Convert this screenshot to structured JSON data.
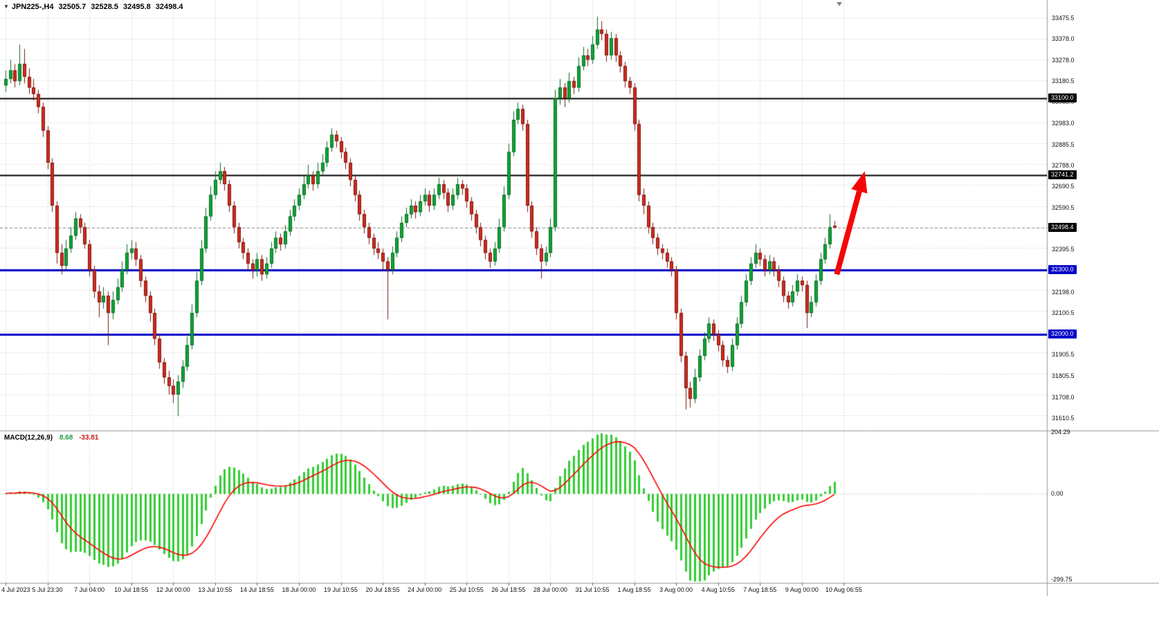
{
  "window": {
    "symbol_period": "JPN225-,H4",
    "quote": {
      "open": "32505.7",
      "high": "32528.5",
      "low": "32495.8",
      "close": "32498.4"
    }
  },
  "colors": {
    "background": "#FFFFFF",
    "grid": "#C8C8C8",
    "bull": "#0FA435",
    "bull_border": "#0A6E24",
    "bear": "#D02A1E",
    "bear_border": "#7E170F",
    "hline_black": "#000000",
    "hline_blue": "#0000C8",
    "current_price_line": "#999999",
    "macd_hist": "#32CD32",
    "macd_signal": "#FF0000",
    "arrow": "#F40606",
    "axis_text": "#111111",
    "badge_text": "#FFFFFF",
    "separator": "#9A9A9A"
  },
  "price_axis": {
    "tick_step": 97.5,
    "ticks": [
      {
        "label": "33475.5",
        "price": 33475.5
      },
      {
        "label": "33378.0",
        "price": 33378.0
      },
      {
        "label": "33278.0",
        "price": 33278.0
      },
      {
        "label": "33180.5",
        "price": 33180.5
      },
      {
        "label": "33083.0",
        "price": 33083.0
      },
      {
        "label": "32983.0",
        "price": 32983.0
      },
      {
        "label": "32885.5",
        "price": 32885.5
      },
      {
        "label": "32788.0",
        "price": 32788.0
      },
      {
        "label": "32690.5",
        "price": 32690.5
      },
      {
        "label": "32590.5",
        "price": 32590.5
      },
      {
        "label": "32395.5",
        "price": 32395.5
      },
      {
        "label": "32198.0",
        "price": 32198.0
      },
      {
        "label": "32100.5",
        "price": 32100.5
      },
      {
        "label": "31905.5",
        "price": 31905.5
      },
      {
        "label": "31805.5",
        "price": 31805.5
      },
      {
        "label": "31708.0",
        "price": 31708.0
      },
      {
        "label": "31610.5",
        "price": 31610.5
      }
    ],
    "badges": [
      {
        "label": "33100.0",
        "price": 33100.0,
        "bg": "#000000"
      },
      {
        "label": "32741.2",
        "price": 32741.2,
        "bg": "#000000"
      },
      {
        "label": "32498.4",
        "price": 32498.4,
        "bg": "#000000"
      },
      {
        "label": "32300.0",
        "price": 32300.0,
        "bg": "#0000C8"
      },
      {
        "label": "32000.0",
        "price": 32000.0,
        "bg": "#0000C8"
      }
    ]
  },
  "macd_panel": {
    "name": "MACD(12,26,9)",
    "main_value": "8.68",
    "signal_value": "-33.81",
    "scale": {
      "max": "204.29",
      "zero": "0.00",
      "min": "-299.75"
    }
  },
  "chart_data": {
    "type": "candlestick",
    "title": "JPN225-,H4",
    "symbol": "JPN225-",
    "timeframe": "H4",
    "ohlc_order": [
      "open",
      "high",
      "low",
      "close"
    ],
    "ylim": [
      31565,
      33545
    ],
    "x_label_every": 9,
    "x_labels": [
      "4 Jul 2023",
      "5 Jul 23:30",
      "7 Jul 04:00",
      "10 Jul 18:55",
      "12 Jul 00:00",
      "13 Jul 10:55",
      "14 Jul 18:55",
      "18 Jul 00:00",
      "19 Jul 10:55",
      "20 Jul 18:55",
      "24 Jul 00:00",
      "25 Jul 10:55",
      "26 Jul 18:55",
      "28 Jul 00:00",
      "31 Jul 10:55",
      "1 Aug 18:55",
      "3 Aug 00:00",
      "4 Aug 10:55",
      "7 Aug 18:55",
      "9 Aug 00:00",
      "10 Aug 06:55"
    ],
    "ohlc": [
      [
        33160,
        33230,
        33130,
        33190
      ],
      [
        33190,
        33280,
        33170,
        33230
      ],
      [
        33230,
        33260,
        33150,
        33180
      ],
      [
        33180,
        33350,
        33160,
        33260
      ],
      [
        33260,
        33330,
        33170,
        33200
      ],
      [
        33200,
        33240,
        33120,
        33150
      ],
      [
        33150,
        33190,
        33090,
        33120
      ],
      [
        33120,
        33140,
        33030,
        33060
      ],
      [
        33060,
        33080,
        32920,
        32950
      ],
      [
        32950,
        32970,
        32770,
        32800
      ],
      [
        32800,
        32820,
        32570,
        32600
      ],
      [
        32600,
        32620,
        32330,
        32380
      ],
      [
        32380,
        32420,
        32280,
        32320
      ],
      [
        32320,
        32440,
        32300,
        32400
      ],
      [
        32400,
        32500,
        32380,
        32460
      ],
      [
        32460,
        32570,
        32440,
        32540
      ],
      [
        32540,
        32560,
        32470,
        32500
      ],
      [
        32500,
        32520,
        32400,
        32420
      ],
      [
        32420,
        32440,
        32270,
        32300
      ],
      [
        32300,
        32320,
        32170,
        32200
      ],
      [
        32200,
        32230,
        32080,
        32150
      ],
      [
        32150,
        32220,
        32120,
        32180
      ],
      [
        32180,
        32200,
        31950,
        32100
      ],
      [
        32100,
        32200,
        32070,
        32160
      ],
      [
        32160,
        32260,
        32140,
        32220
      ],
      [
        32220,
        32340,
        32200,
        32300
      ],
      [
        32300,
        32420,
        32280,
        32380
      ],
      [
        32380,
        32440,
        32350,
        32400
      ],
      [
        32400,
        32430,
        32320,
        32350
      ],
      [
        32350,
        32370,
        32220,
        32250
      ],
      [
        32250,
        32270,
        32150,
        32180
      ],
      [
        32180,
        32200,
        32060,
        32100
      ],
      [
        32100,
        32120,
        31950,
        31980
      ],
      [
        31980,
        32000,
        31840,
        31870
      ],
      [
        31870,
        31890,
        31770,
        31800
      ],
      [
        31800,
        31830,
        31720,
        31760
      ],
      [
        31760,
        31790,
        31680,
        31720
      ],
      [
        31720,
        31810,
        31620,
        31780
      ],
      [
        31780,
        31880,
        31750,
        31850
      ],
      [
        31850,
        31990,
        31830,
        31950
      ],
      [
        31950,
        32140,
        31930,
        32100
      ],
      [
        32100,
        32290,
        32080,
        32250
      ],
      [
        32250,
        32440,
        32230,
        32400
      ],
      [
        32400,
        32590,
        32380,
        32550
      ],
      [
        32550,
        32690,
        32530,
        32650
      ],
      [
        32650,
        32760,
        32630,
        32720
      ],
      [
        32720,
        32800,
        32700,
        32760
      ],
      [
        32760,
        32780,
        32670,
        32700
      ],
      [
        32700,
        32720,
        32570,
        32600
      ],
      [
        32600,
        32620,
        32470,
        32500
      ],
      [
        32500,
        32520,
        32400,
        32430
      ],
      [
        32430,
        32450,
        32350,
        32380
      ],
      [
        32380,
        32400,
        32300,
        32330
      ],
      [
        32330,
        32350,
        32260,
        32300
      ],
      [
        32300,
        32380,
        32270,
        32350
      ],
      [
        32350,
        32370,
        32250,
        32280
      ],
      [
        32280,
        32360,
        32260,
        32330
      ],
      [
        32330,
        32430,
        32310,
        32400
      ],
      [
        32400,
        32480,
        32380,
        32450
      ],
      [
        32450,
        32470,
        32390,
        32420
      ],
      [
        32420,
        32510,
        32400,
        32480
      ],
      [
        32480,
        32580,
        32460,
        32550
      ],
      [
        32550,
        32630,
        32530,
        32600
      ],
      [
        32600,
        32680,
        32580,
        32650
      ],
      [
        32650,
        32740,
        32630,
        32700
      ],
      [
        32700,
        32790,
        32680,
        32740
      ],
      [
        32740,
        32760,
        32670,
        32700
      ],
      [
        32700,
        32800,
        32680,
        32760
      ],
      [
        32760,
        32840,
        32740,
        32800
      ],
      [
        32800,
        32900,
        32780,
        32870
      ],
      [
        32870,
        32960,
        32850,
        32930
      ],
      [
        32930,
        32950,
        32870,
        32900
      ],
      [
        32900,
        32920,
        32820,
        32850
      ],
      [
        32850,
        32870,
        32770,
        32800
      ],
      [
        32800,
        32820,
        32690,
        32720
      ],
      [
        32720,
        32740,
        32620,
        32650
      ],
      [
        32650,
        32670,
        32530,
        32560
      ],
      [
        32560,
        32580,
        32470,
        32500
      ],
      [
        32500,
        32520,
        32420,
        32450
      ],
      [
        32450,
        32470,
        32370,
        32400
      ],
      [
        32400,
        32430,
        32350,
        32380
      ],
      [
        32380,
        32400,
        32300,
        32340
      ],
      [
        32340,
        32360,
        32070,
        32300
      ],
      [
        32300,
        32410,
        32280,
        32380
      ],
      [
        32380,
        32480,
        32360,
        32450
      ],
      [
        32450,
        32550,
        32430,
        32520
      ],
      [
        32520,
        32590,
        32500,
        32560
      ],
      [
        32560,
        32630,
        32540,
        32600
      ],
      [
        32600,
        32620,
        32540,
        32570
      ],
      [
        32570,
        32650,
        32550,
        32620
      ],
      [
        32620,
        32680,
        32600,
        32650
      ],
      [
        32650,
        32670,
        32570,
        32600
      ],
      [
        32600,
        32680,
        32580,
        32650
      ],
      [
        32650,
        32730,
        32630,
        32700
      ],
      [
        32700,
        32720,
        32630,
        32660
      ],
      [
        32660,
        32680,
        32570,
        32600
      ],
      [
        32600,
        32680,
        32580,
        32650
      ],
      [
        32650,
        32730,
        32630,
        32700
      ],
      [
        32700,
        32720,
        32650,
        32680
      ],
      [
        32680,
        32700,
        32590,
        32620
      ],
      [
        32620,
        32640,
        32530,
        32560
      ],
      [
        32560,
        32580,
        32470,
        32500
      ],
      [
        32500,
        32520,
        32410,
        32440
      ],
      [
        32440,
        32460,
        32350,
        32380
      ],
      [
        32380,
        32400,
        32310,
        32340
      ],
      [
        32340,
        32430,
        32320,
        32400
      ],
      [
        32400,
        32540,
        32380,
        32500
      ],
      [
        32500,
        32690,
        32480,
        32650
      ],
      [
        32650,
        32890,
        32630,
        32850
      ],
      [
        32850,
        33040,
        32830,
        33000
      ],
      [
        33000,
        33080,
        32980,
        33050
      ],
      [
        33050,
        33070,
        32950,
        32980
      ],
      [
        32980,
        33000,
        32570,
        32600
      ],
      [
        32600,
        32620,
        32450,
        32480
      ],
      [
        32480,
        32500,
        32370,
        32400
      ],
      [
        32400,
        32420,
        32260,
        32340
      ],
      [
        32340,
        32410,
        32320,
        32380
      ],
      [
        32380,
        32540,
        32360,
        32500
      ],
      [
        32500,
        33140,
        32480,
        33100
      ],
      [
        33100,
        33190,
        33070,
        33150
      ],
      [
        33150,
        33170,
        33060,
        33100
      ],
      [
        33100,
        33220,
        33080,
        33180
      ],
      [
        33180,
        33200,
        33120,
        33150
      ],
      [
        33150,
        33290,
        33130,
        33250
      ],
      [
        33250,
        33340,
        33230,
        33300
      ],
      [
        33300,
        33330,
        33250,
        33280
      ],
      [
        33280,
        33390,
        33260,
        33350
      ],
      [
        33350,
        33480,
        33330,
        33420
      ],
      [
        33420,
        33460,
        33370,
        33400
      ],
      [
        33400,
        33420,
        33270,
        33300
      ],
      [
        33300,
        33410,
        33280,
        33380
      ],
      [
        33380,
        33400,
        33270,
        33300
      ],
      [
        33300,
        33320,
        33220,
        33250
      ],
      [
        33250,
        33270,
        33150,
        33180
      ],
      [
        33180,
        33200,
        33120,
        33150
      ],
      [
        33150,
        33170,
        32950,
        32980
      ],
      [
        32980,
        33000,
        32620,
        32650
      ],
      [
        32650,
        32680,
        32560,
        32600
      ],
      [
        32600,
        32620,
        32470,
        32500
      ],
      [
        32500,
        32520,
        32420,
        32450
      ],
      [
        32450,
        32470,
        32370,
        32400
      ],
      [
        32400,
        32420,
        32350,
        32380
      ],
      [
        32380,
        32400,
        32310,
        32340
      ],
      [
        32340,
        32360,
        32270,
        32300
      ],
      [
        32300,
        32320,
        32070,
        32100
      ],
      [
        32100,
        32120,
        31870,
        31900
      ],
      [
        31900,
        31920,
        31650,
        31750
      ],
      [
        31750,
        31780,
        31660,
        31700
      ],
      [
        31700,
        31840,
        31680,
        31800
      ],
      [
        31800,
        31930,
        31780,
        31900
      ],
      [
        31900,
        32010,
        31880,
        31980
      ],
      [
        31980,
        32080,
        31960,
        32050
      ],
      [
        32050,
        32070,
        31970,
        32000
      ],
      [
        32000,
        32020,
        31920,
        31950
      ],
      [
        31950,
        31970,
        31850,
        31880
      ],
      [
        31880,
        31900,
        31820,
        31850
      ],
      [
        31850,
        31980,
        31830,
        31950
      ],
      [
        31950,
        32080,
        31930,
        32050
      ],
      [
        32050,
        32180,
        32030,
        32150
      ],
      [
        32150,
        32280,
        32130,
        32250
      ],
      [
        32250,
        32360,
        32230,
        32330
      ],
      [
        32330,
        32420,
        32310,
        32380
      ],
      [
        32380,
        32400,
        32320,
        32350
      ],
      [
        32350,
        32370,
        32270,
        32300
      ],
      [
        32300,
        32370,
        32280,
        32340
      ],
      [
        32340,
        32360,
        32270,
        32300
      ],
      [
        32300,
        32320,
        32220,
        32250
      ],
      [
        32250,
        32270,
        32150,
        32180
      ],
      [
        32180,
        32200,
        32120,
        32150
      ],
      [
        32150,
        32230,
        32130,
        32200
      ],
      [
        32200,
        32280,
        32180,
        32250
      ],
      [
        32250,
        32270,
        32200,
        32230
      ],
      [
        32230,
        32250,
        32030,
        32100
      ],
      [
        32100,
        32180,
        32080,
        32150
      ],
      [
        32150,
        32280,
        32130,
        32250
      ],
      [
        32250,
        32380,
        32230,
        32350
      ],
      [
        32350,
        32450,
        32330,
        32420
      ],
      [
        32420,
        32560,
        32400,
        32500
      ],
      [
        32505.7,
        32528.5,
        32495.8,
        32498.4
      ]
    ],
    "hlines": [
      {
        "price": 33100.0,
        "color": "#000000",
        "width": 2
      },
      {
        "price": 32741.2,
        "color": "#000000",
        "width": 2
      },
      {
        "price": 32300.0,
        "color": "#0000C8",
        "width": 3
      },
      {
        "price": 32000.0,
        "color": "#0000C8",
        "width": 3
      }
    ],
    "current_price": 32498.4,
    "indicator": {
      "name": "MACD",
      "params": [
        12,
        26,
        9
      ],
      "main": 8.68,
      "signal": -33.81,
      "ylim": [
        -299.75,
        204.29
      ]
    },
    "annotations": [
      {
        "type": "arrow",
        "color": "#F40606",
        "from": {
          "index": 178.5,
          "price": 32280
        },
        "to": {
          "index": 184.5,
          "price": 32760
        }
      }
    ]
  }
}
